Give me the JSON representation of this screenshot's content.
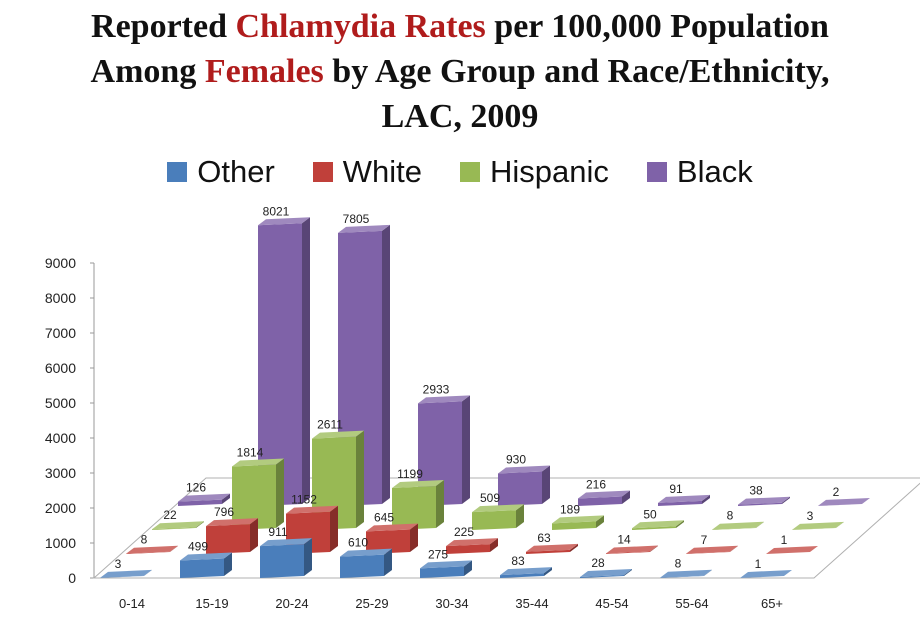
{
  "title": {
    "line1_pre": "Reported ",
    "line1_highlight": "Chlamydia Rates",
    "line1_post": " per 100,000 Population",
    "line2_pre": "Among ",
    "line2_highlight": "Females",
    "line2_post": " by Age Group and Race/Ethnicity,",
    "line3": "LAC, 2009"
  },
  "legend": [
    {
      "label": "Other",
      "color": "#4a7ebb"
    },
    {
      "label": "White",
      "color": "#c0403a"
    },
    {
      "label": "Hispanic",
      "color": "#98b954"
    },
    {
      "label": "Black",
      "color": "#7f62a8"
    }
  ],
  "chart_data": {
    "type": "bar",
    "title": "Reported Chlamydia Rates per 100,000 Population Among Females by Age Group and Race/Ethnicity, LAC, 2009",
    "categories": [
      "0-14",
      "15-19",
      "20-24",
      "25-29",
      "30-34",
      "35-44",
      "45-54",
      "55-64",
      "65+"
    ],
    "series": [
      {
        "name": "Other",
        "color": "#4a7ebb",
        "values": [
          3,
          499,
          911,
          610,
          275,
          83,
          28,
          8,
          1
        ]
      },
      {
        "name": "White",
        "color": "#c0403a",
        "values": [
          8,
          796,
          1152,
          645,
          225,
          63,
          14,
          7,
          1
        ]
      },
      {
        "name": "Hispanic",
        "color": "#98b954",
        "values": [
          22,
          1814,
          2611,
          1199,
          509,
          189,
          50,
          8,
          3
        ]
      },
      {
        "name": "Black",
        "color": "#7f62a8",
        "values": [
          126,
          8021,
          7805,
          2933,
          930,
          216,
          91,
          38,
          2
        ]
      }
    ],
    "y_ticks": [
      "0",
      "1000",
      "2000",
      "3000",
      "4000",
      "5000",
      "6000",
      "7000",
      "8000",
      "9000"
    ],
    "ylim": [
      0,
      9000
    ],
    "legend_position": "top",
    "style": "3d-clustered-columns"
  }
}
